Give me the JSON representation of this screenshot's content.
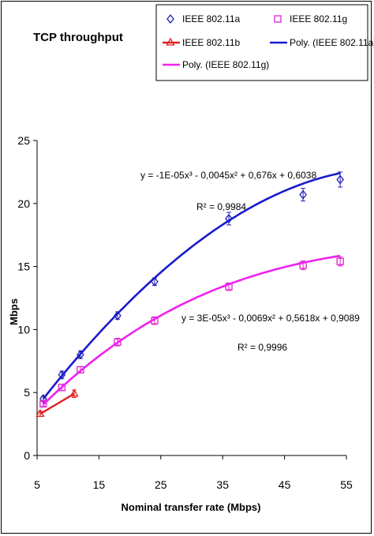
{
  "chart_data": {
    "type": "scatter",
    "title": "TCP throughput",
    "xlabel": "Nominal transfer rate (Mbps)",
    "ylabel": "Mbps",
    "xlim": [
      5,
      55
    ],
    "ylim": [
      0,
      25
    ],
    "xticks": [
      5,
      15,
      25,
      35,
      45,
      55
    ],
    "yticks": [
      0,
      5,
      10,
      15,
      20,
      25
    ],
    "grid": false,
    "legend_position": "top-right",
    "series": [
      {
        "name": "IEEE 802.11a",
        "kind": "points",
        "marker": "diamond",
        "color": "#2020b0",
        "x": [
          6,
          9,
          12,
          18,
          24,
          36,
          48,
          54
        ],
        "y": [
          4.5,
          6.4,
          8.0,
          11.1,
          13.8,
          18.8,
          20.7,
          21.9
        ],
        "error": [
          0.2,
          0.3,
          0.3,
          0.3,
          0.3,
          0.5,
          0.5,
          0.6
        ]
      },
      {
        "name": "IEEE 802.11g",
        "kind": "points",
        "marker": "square",
        "color": "#e020d0",
        "x": [
          6,
          9,
          12,
          18,
          24,
          36,
          48,
          54
        ],
        "y": [
          4.1,
          5.4,
          6.8,
          9.0,
          10.7,
          13.4,
          15.1,
          15.4
        ],
        "error": [
          0.2,
          0.25,
          0.25,
          0.3,
          0.3,
          0.3,
          0.35,
          0.35
        ]
      },
      {
        "name": "IEEE 802.11b",
        "kind": "line-points",
        "marker": "triangle",
        "color": "#e02020",
        "x": [
          5.5,
          11
        ],
        "y": [
          3.3,
          4.9
        ],
        "error": [
          0.2,
          0.3
        ]
      },
      {
        "name": "Poly. (IEEE 802.11a)",
        "kind": "poly",
        "color": "#1a1acc",
        "coef": [
          0.6038,
          0.676,
          -0.0045,
          -1e-05
        ],
        "x_range": [
          6,
          54
        ]
      },
      {
        "name": "Poly. (IEEE 802.11g)",
        "kind": "poly",
        "color": "#ee22ee",
        "coef": [
          0.9089,
          0.5618,
          -0.0069,
          3e-05
        ],
        "x_range": [
          6,
          54
        ]
      }
    ],
    "annotations": {
      "eq_a": "y = -1E-05x³ - 0,0045x² + 0,676x + 0,6038",
      "r2_a": "R² = 0,9984",
      "eq_g": "y = 3E-05x³ - 0,0069x² + 0,5618x + 0,9089",
      "r2_g": "R² = 0,9996"
    }
  }
}
